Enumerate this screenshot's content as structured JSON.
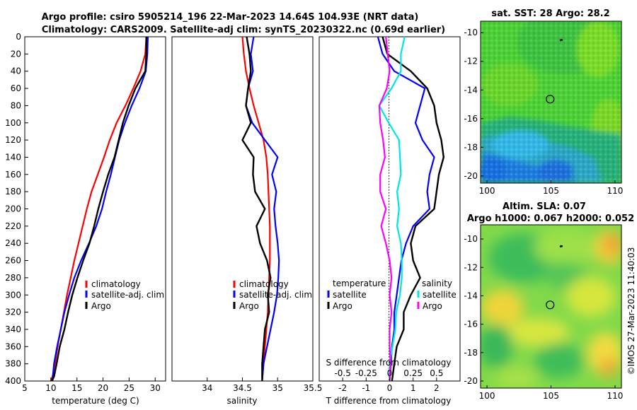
{
  "header": {
    "title_line1": "Argo profile: csiro 5905214_196 22-Mar-2023 14.64S 104.93E (NRT data)",
    "title_line2": "Climatology: CARS2009. Satellite-adj clim: synTS_20230322.nc (0.69d earlier)"
  },
  "sst_map": {
    "title": "sat. SST: 28 Argo: 28.2"
  },
  "sla_map": {
    "title_line1": "Altim. SLA: 0.07",
    "title_line2": "Argo h1000: 0.067 h2000: 0.052"
  },
  "credit": "©IMOS 27-Mar-2023 11:40:03",
  "colors": {
    "climatology": "#ff0000",
    "satellite": "#0000ff",
    "argo": "#000000",
    "sal_sat": "#00e5e5",
    "sal_argo": "#ff00ff"
  },
  "chart_data": [
    {
      "type": "line",
      "id": "temperature",
      "xlabel": "temperature (deg C)",
      "xlim": [
        5,
        32
      ],
      "ylim": [
        400,
        0
      ],
      "xticks": [
        "5",
        "10",
        "15",
        "20",
        "25",
        "30"
      ],
      "yticks": [
        "0",
        "20",
        "40",
        "60",
        "80",
        "100",
        "120",
        "140",
        "160",
        "180",
        "200",
        "220",
        "240",
        "260",
        "280",
        "300",
        "320",
        "340",
        "360",
        "380",
        "400"
      ],
      "legend": [
        "climatology",
        "satellite-adj. clim",
        "Argo"
      ],
      "series": [
        {
          "name": "climatology",
          "x": [
            28.3,
            28.1,
            27.2,
            25.8,
            24.3,
            22.6,
            21.3,
            20.2,
            19.0,
            17.8,
            16.9,
            16.1,
            15.3,
            14.5,
            13.8,
            13.1,
            12.5,
            11.9,
            11.3,
            10.8,
            10.3,
            10.0
          ],
          "y": [
            0,
            20,
            40,
            60,
            80,
            100,
            120,
            140,
            160,
            180,
            200,
            220,
            240,
            260,
            280,
            300,
            320,
            340,
            360,
            380,
            395,
            400
          ]
        },
        {
          "name": "satellite-adj. clim",
          "x": [
            28.6,
            28.5,
            28.2,
            27.0,
            25.5,
            24.2,
            23.1,
            22.3,
            21.5,
            20.6,
            19.8,
            18.7,
            17.3,
            15.8,
            14.5,
            13.5,
            12.6,
            11.9,
            11.2,
            10.6,
            10.3
          ],
          "y": [
            0,
            20,
            40,
            60,
            80,
            100,
            120,
            140,
            160,
            180,
            200,
            220,
            240,
            260,
            280,
            300,
            320,
            340,
            360,
            380,
            400
          ]
        },
        {
          "name": "Argo",
          "x": [
            28.3,
            28.3,
            28.1,
            26.2,
            24.9,
            23.8,
            23.0,
            22.2,
            21.0,
            20.0,
            19.1,
            18.3,
            17.4,
            16.2,
            15.1,
            14.1,
            13.3,
            12.6,
            11.7,
            11.1,
            10.6,
            10.2
          ],
          "y": [
            0,
            20,
            40,
            60,
            80,
            100,
            120,
            140,
            160,
            180,
            200,
            220,
            240,
            260,
            280,
            300,
            320,
            340,
            360,
            380,
            395,
            400
          ]
        }
      ]
    },
    {
      "type": "line",
      "id": "salinity",
      "xlabel": "salinity",
      "xlim": [
        33.5,
        35.5
      ],
      "ylim": [
        400,
        0
      ],
      "xticks": [
        "34",
        "34.5",
        "35",
        "35.5"
      ],
      "legend": [
        "climatology",
        "satellite-adj. clim",
        "Argo"
      ],
      "series": [
        {
          "name": "climatology",
          "x": [
            34.5,
            34.52,
            34.55,
            34.6,
            34.66,
            34.73,
            34.8,
            34.84,
            34.86,
            34.87,
            34.88,
            34.89,
            34.89,
            34.89,
            34.88,
            34.87,
            34.86,
            34.84,
            34.82,
            34.8,
            34.78
          ],
          "y": [
            0,
            20,
            40,
            60,
            80,
            100,
            120,
            140,
            160,
            180,
            200,
            220,
            240,
            260,
            280,
            300,
            320,
            340,
            360,
            380,
            400
          ]
        },
        {
          "name": "satellite-adj. clim",
          "x": [
            34.66,
            34.62,
            34.65,
            34.58,
            34.55,
            34.64,
            34.82,
            35.0,
            34.92,
            34.98,
            34.95,
            34.97,
            35.0,
            35.02,
            35.01,
            34.99,
            34.95,
            34.9,
            34.85,
            34.8,
            34.78
          ],
          "y": [
            0,
            20,
            40,
            60,
            80,
            100,
            120,
            140,
            160,
            180,
            200,
            220,
            240,
            260,
            280,
            300,
            320,
            340,
            360,
            380,
            400
          ]
        },
        {
          "name": "Argo",
          "x": [
            34.56,
            34.6,
            34.62,
            34.58,
            34.55,
            34.62,
            34.5,
            34.66,
            34.65,
            34.68,
            34.82,
            34.7,
            34.75,
            34.85,
            34.9,
            34.86,
            34.88,
            34.82,
            34.8,
            34.78,
            34.78
          ],
          "y": [
            0,
            20,
            40,
            60,
            80,
            100,
            120,
            140,
            160,
            180,
            200,
            220,
            240,
            260,
            280,
            300,
            320,
            340,
            360,
            380,
            400
          ]
        }
      ]
    },
    {
      "type": "line",
      "id": "difference",
      "xlabel": "T difference from climatology",
      "xlabel_top": "S difference from climatology",
      "xlim": [
        -3,
        3
      ],
      "slim": [
        -0.75,
        0.75
      ],
      "ylim": [
        400,
        0
      ],
      "xticks": [
        "-2",
        "-1",
        "0",
        "1",
        "2"
      ],
      "sticks": [
        "-0.5",
        "-0.25",
        "0",
        "0.25",
        "0.5"
      ],
      "legend_left_title": "temperature",
      "legend_right_title": "salinity",
      "legend_left": [
        "satellite",
        "Argo"
      ],
      "legend_right": [
        "satellite",
        "Argo"
      ],
      "series": [
        {
          "name": "T satellite",
          "x": [
            -0.5,
            -0.3,
            0.2,
            1.5,
            1.3,
            1.1,
            1.4,
            1.9,
            1.7,
            1.6,
            1.7,
            1.0,
            0.7,
            0.5,
            0.4,
            0.3,
            0.2,
            0.2,
            0.1,
            0.05,
            0.0
          ],
          "y": [
            0,
            20,
            40,
            60,
            80,
            100,
            120,
            140,
            160,
            180,
            200,
            220,
            240,
            260,
            280,
            300,
            320,
            340,
            360,
            380,
            400
          ]
        },
        {
          "name": "T Argo",
          "x": [
            -0.3,
            -0.1,
            0.9,
            1.6,
            1.9,
            2.0,
            2.2,
            2.3,
            2.1,
            2.0,
            1.9,
            1.1,
            0.9,
            1.0,
            1.3,
            0.9,
            0.6,
            0.6,
            0.3,
            0.2,
            0.1
          ],
          "y": [
            0,
            20,
            40,
            60,
            80,
            100,
            120,
            140,
            160,
            180,
            200,
            220,
            240,
            260,
            280,
            300,
            320,
            340,
            360,
            380,
            400
          ]
        },
        {
          "name": "S satellite",
          "x": [
            0.16,
            0.12,
            0.12,
            0.02,
            -0.11,
            -0.01,
            0.1,
            0.11,
            0.12,
            0.08,
            0.1,
            0.08,
            0.12,
            0.13,
            0.13,
            0.11,
            0.07,
            0.06,
            0.03,
            0.0,
            0.0
          ],
          "y": [
            0,
            20,
            40,
            60,
            80,
            100,
            120,
            140,
            160,
            180,
            200,
            220,
            240,
            260,
            280,
            300,
            320,
            340,
            360,
            380,
            400
          ]
        },
        {
          "name": "S Argo",
          "x": [
            -0.04,
            -0.02,
            0.0,
            -0.03,
            -0.11,
            -0.1,
            -0.07,
            -0.05,
            -0.1,
            -0.1,
            -0.04,
            -0.09,
            -0.04,
            0.0,
            0.02,
            0.0,
            0.02,
            0.0,
            0.0,
            0.01,
            0.0
          ],
          "y": [
            0,
            20,
            40,
            60,
            80,
            100,
            120,
            140,
            160,
            180,
            200,
            220,
            240,
            260,
            280,
            300,
            320,
            340,
            360,
            380,
            400
          ]
        }
      ]
    },
    {
      "type": "heatmap",
      "id": "sst_map",
      "xlim": [
        99.5,
        110.5
      ],
      "ylim": [
        -20.5,
        -9.2
      ],
      "xticks": [
        "100",
        "105",
        "110"
      ],
      "yticks": [
        "-10",
        "-12",
        "-14",
        "-16",
        "-18",
        "-20"
      ],
      "profile": {
        "lon": 104.93,
        "lat": -14.64
      }
    },
    {
      "type": "heatmap",
      "id": "sla_map",
      "xlim": [
        99.5,
        110.5
      ],
      "ylim": [
        -20.5,
        -9.0
      ],
      "xticks": [
        "100",
        "105",
        "110"
      ],
      "yticks": [
        "-10",
        "-12",
        "-14",
        "-16",
        "-18",
        "-20"
      ],
      "profile": {
        "lon": 104.93,
        "lat": -14.64
      }
    }
  ]
}
